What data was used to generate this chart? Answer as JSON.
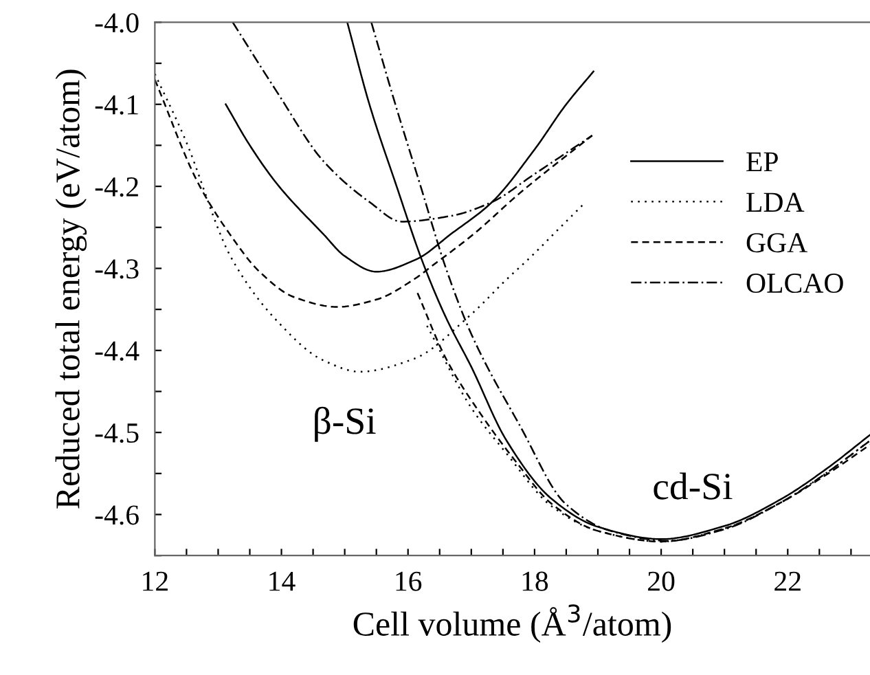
{
  "chart_data": {
    "type": "line",
    "xlabel": "Cell volume (Å$^{3}$/atom)",
    "ylabel": "Reduced total energy (eV/atom)",
    "xlim": [
      12,
      23.3
    ],
    "ylim": [
      -4.65,
      -4.0
    ],
    "xticks": [
      12,
      {
        "value": 12.5,
        "label": null
      },
      {
        "value": 13,
        "label": null
      },
      {
        "value": 13.5,
        "label": null
      },
      14,
      {
        "value": 14.5,
        "label": null
      },
      {
        "value": 15,
        "label": null
      },
      {
        "value": 15.5,
        "label": null
      },
      16,
      {
        "value": 16.5,
        "label": null
      },
      {
        "value": 17,
        "label": null
      },
      {
        "value": 17.5,
        "label": null
      },
      18,
      {
        "value": 18.5,
        "label": null
      },
      {
        "value": 19,
        "label": null
      },
      {
        "value": 19.5,
        "label": null
      },
      20,
      {
        "value": 20.5,
        "label": null
      },
      {
        "value": 21,
        "label": null
      },
      {
        "value": 21.5,
        "label": null
      },
      22,
      {
        "value": 22.5,
        "label": null
      },
      {
        "value": 23,
        "label": null
      }
    ],
    "yticks": [
      {
        "value": -4.0,
        "label": "-4.0"
      },
      {
        "value": -4.05,
        "label": null
      },
      {
        "value": -4.1,
        "label": "-4.1"
      },
      {
        "value": -4.15,
        "label": null
      },
      {
        "value": -4.2,
        "label": "-4.2"
      },
      {
        "value": -4.25,
        "label": null
      },
      {
        "value": -4.3,
        "label": "-4.3"
      },
      {
        "value": -4.35,
        "label": null
      },
      {
        "value": -4.4,
        "label": "-4.4"
      },
      {
        "value": -4.45,
        "label": null
      },
      {
        "value": -4.5,
        "label": "-4.5"
      },
      {
        "value": -4.55,
        "label": null
      },
      {
        "value": -4.6,
        "label": "-4.6"
      },
      {
        "value": -4.65,
        "label": null
      }
    ],
    "grid": false,
    "legend": "right",
    "marker": "none",
    "series": [
      {
        "name": "EP",
        "color": "#000000",
        "line_style": "solid",
        "x": [
          13.12,
          13.5,
          13.93,
          14.66,
          15.0,
          15.5,
          16.13,
          16.68,
          17.33,
          18.0,
          18.5,
          18.93
        ],
        "values": [
          -4.1,
          -4.15,
          -4.197,
          -4.258,
          -4.285,
          -4.304,
          -4.289,
          -4.258,
          -4.219,
          -4.155,
          -4.1,
          -4.06
        ]
      },
      {
        "name": "LDA",
        "color": "#000000",
        "line_style": "dotted",
        "x": [
          12.0,
          12.47,
          13.2,
          13.93,
          14.66,
          15.24,
          16.1,
          16.97,
          17.55,
          17.98,
          18.38,
          18.77
        ],
        "values": [
          -4.063,
          -4.141,
          -4.286,
          -4.364,
          -4.412,
          -4.426,
          -4.41,
          -4.358,
          -4.314,
          -4.283,
          -4.252,
          -4.222
        ]
      },
      {
        "name": "GGA",
        "color": "#000000",
        "line_style": "dashed",
        "x": [
          12.0,
          12.69,
          13.2,
          13.64,
          14.2,
          14.88,
          15.5,
          16.12,
          16.38,
          17.04,
          17.77,
          18.91
        ],
        "values": [
          -4.07,
          -4.197,
          -4.26,
          -4.303,
          -4.335,
          -4.347,
          -4.338,
          -4.312,
          -4.297,
          -4.258,
          -4.208,
          -4.138
        ]
      },
      {
        "name": "OLCAO",
        "color": "#000000",
        "line_style": "dashdot",
        "x": [
          13.23,
          13.93,
          14.66,
          15.39,
          15.9,
          16.68,
          17.33,
          17.98,
          18.91
        ],
        "values": [
          -4.0,
          -4.085,
          -4.169,
          -4.219,
          -4.243,
          -4.236,
          -4.219,
          -4.186,
          -4.138
        ]
      },
      {
        "color": "#000000",
        "line_style": "solid",
        "x": [
          15.04,
          15.39,
          15.82,
          16.23,
          16.6,
          17.0,
          17.55,
          18.27,
          19.0,
          20.0,
          21.0,
          21.9,
          22.6,
          23.3
        ],
        "values": [
          -4.0,
          -4.1,
          -4.2,
          -4.292,
          -4.36,
          -4.42,
          -4.509,
          -4.581,
          -4.615,
          -4.63,
          -4.614,
          -4.581,
          -4.545,
          -4.503
        ]
      },
      {
        "color": "#000000",
        "line_style": "dotted",
        "x": [
          16.3,
          17.0,
          17.55,
          18.27,
          19.0,
          20.0,
          21.0,
          21.9,
          22.6,
          23.3
        ],
        "values": [
          -4.37,
          -4.47,
          -4.525,
          -4.59,
          -4.62,
          -4.633,
          -4.617,
          -4.585,
          -4.55,
          -4.51
        ]
      },
      {
        "color": "#000000",
        "line_style": "dashed",
        "x": [
          16.15,
          16.6,
          17.18,
          17.7,
          18.27,
          19.0,
          20.0,
          21.0,
          21.9,
          22.6,
          23.3
        ],
        "values": [
          -4.33,
          -4.41,
          -4.481,
          -4.535,
          -4.587,
          -4.62,
          -4.633,
          -4.617,
          -4.585,
          -4.552,
          -4.515
        ]
      },
      {
        "color": "#000000",
        "line_style": "dashdot",
        "x": [
          15.42,
          15.8,
          16.2,
          16.6,
          17.0,
          17.77,
          18.49,
          19.2,
          20.1,
          21.0,
          21.9,
          22.6,
          23.3
        ],
        "values": [
          -4.0,
          -4.1,
          -4.2,
          -4.3,
          -4.38,
          -4.492,
          -4.587,
          -4.62,
          -4.632,
          -4.618,
          -4.585,
          -4.55,
          -4.51
        ]
      }
    ],
    "annotations": [
      "β-Si",
      "cd-Si"
    ]
  }
}
